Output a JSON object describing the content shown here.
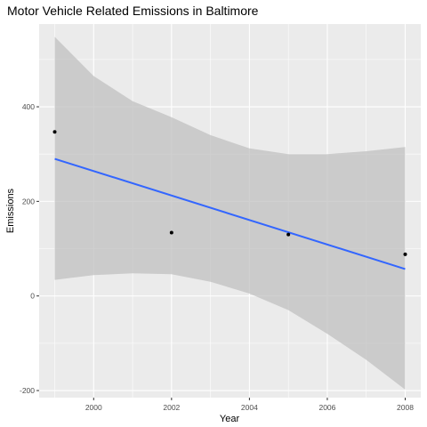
{
  "chart_data": {
    "type": "scatter",
    "title": "Motor Vehicle Related Emissions in Baltimore",
    "xlabel": "Year",
    "ylabel": "Emissions",
    "xlim": [
      1998.6,
      2008.4
    ],
    "ylim": [
      -215,
      575
    ],
    "x_ticks": [
      2000,
      2002,
      2004,
      2006,
      2008
    ],
    "y_ticks": [
      -200,
      0,
      200,
      400
    ],
    "grid": true,
    "points": [
      {
        "x": 1999,
        "y": 347
      },
      {
        "x": 2002,
        "y": 134
      },
      {
        "x": 2005,
        "y": 130
      },
      {
        "x": 2008,
        "y": 88
      }
    ],
    "trend_line": {
      "method": "linear",
      "x": [
        1999,
        2008
      ],
      "y": [
        290,
        57
      ]
    },
    "confidence_band": {
      "x": [
        1999,
        2000,
        2001,
        2002,
        2003,
        2004,
        2005,
        2006,
        2007,
        2008
      ],
      "upper": [
        548,
        465,
        412,
        378,
        340,
        312,
        300,
        300,
        306,
        315
      ],
      "lower": [
        34,
        44,
        48,
        46,
        30,
        5,
        -30,
        -80,
        -135,
        -198
      ]
    },
    "colors": {
      "panel_background": "#ebebeb",
      "grid_major": "#ffffff",
      "band_fill": "#c0c0c0",
      "trend_line": "#3366ff",
      "points": "#000000",
      "tick_text": "#4d4d4d",
      "tick_mark": "#333333"
    }
  }
}
